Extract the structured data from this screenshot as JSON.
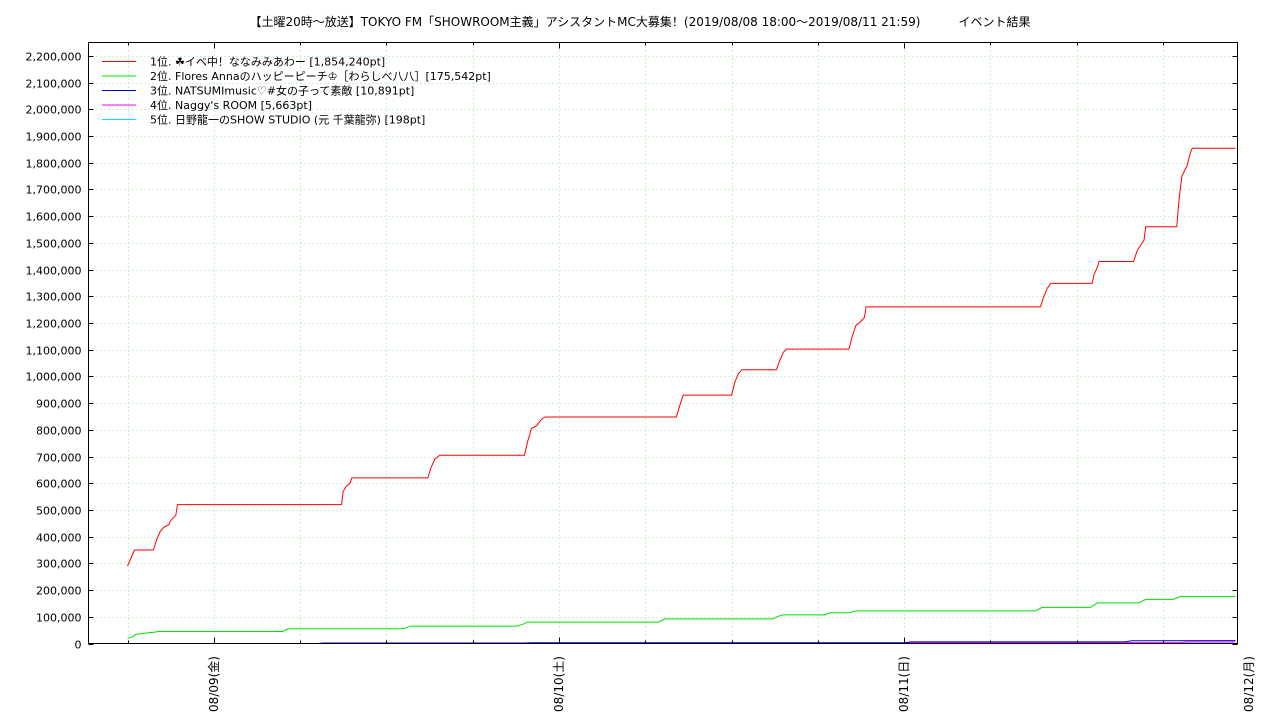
{
  "chart_data": {
    "type": "line",
    "title": "【土曜20時～放送】TOKYO FM「SHOWROOM主義」アシスタントMC大募集！(2019/08/08 18:00～2019/08/11 21:59)          イベント結果",
    "xlabel": "",
    "ylabel": "",
    "x_tick_labels": [
      "08/09(金)",
      "08/10(土)",
      "08/11(日)",
      "08/12(月)"
    ],
    "x_tick_days": [
      1,
      2,
      3,
      4
    ],
    "xlim_days": [
      0.637,
      3.966
    ],
    "ylim": [
      0,
      2250000
    ],
    "y_ticks": [
      0,
      100000,
      200000,
      300000,
      400000,
      500000,
      600000,
      700000,
      800000,
      900000,
      1000000,
      1100000,
      1200000,
      1300000,
      1400000,
      1500000,
      1600000,
      1700000,
      1800000,
      1900000,
      2000000,
      2100000,
      2200000
    ],
    "y_tick_labels": [
      "0",
      "100,000",
      "200,000",
      "300,000",
      "400,000",
      "500,000",
      "600,000",
      "700,000",
      "800,000",
      "900,000",
      "1,000,000",
      "1,100,000",
      "1,200,000",
      "1,300,000",
      "1,400,000",
      "1,500,000",
      "1,600,000",
      "1,700,000",
      "1,800,000",
      "1,900,000",
      "2,000,000",
      "2,100,000",
      "2,200,000"
    ],
    "grid": true,
    "legend_position": "top-left",
    "series": [
      {
        "name": "1位. ☘イベ中！ななみみあわー [1,854,240pt]",
        "color": "#ff0000",
        "points": [
          [
            0.75,
            290000
          ],
          [
            0.76,
            320000
          ],
          [
            0.77,
            350000
          ],
          [
            0.825,
            350000
          ],
          [
            0.835,
            390000
          ],
          [
            0.845,
            420000
          ],
          [
            0.855,
            435000
          ],
          [
            0.87,
            445000
          ],
          [
            0.875,
            460000
          ],
          [
            0.89,
            480000
          ],
          [
            0.895,
            520000
          ],
          [
            1.37,
            520000
          ],
          [
            1.375,
            570000
          ],
          [
            1.385,
            590000
          ],
          [
            1.395,
            600000
          ],
          [
            1.4,
            620000
          ],
          [
            1.62,
            620000
          ],
          [
            1.63,
            660000
          ],
          [
            1.64,
            690000
          ],
          [
            1.655,
            705000
          ],
          [
            1.9,
            705000
          ],
          [
            1.91,
            760000
          ],
          [
            1.915,
            780000
          ],
          [
            1.92,
            805000
          ],
          [
            1.935,
            815000
          ],
          [
            1.95,
            840000
          ],
          [
            1.96,
            848000
          ],
          [
            2.34,
            848000
          ],
          [
            2.35,
            890000
          ],
          [
            2.36,
            930000
          ],
          [
            2.5,
            930000
          ],
          [
            2.51,
            980000
          ],
          [
            2.52,
            1010000
          ],
          [
            2.53,
            1025000
          ],
          [
            2.63,
            1025000
          ],
          [
            2.64,
            1060000
          ],
          [
            2.65,
            1090000
          ],
          [
            2.66,
            1102000
          ],
          [
            2.84,
            1102000
          ],
          [
            2.85,
            1150000
          ],
          [
            2.86,
            1190000
          ],
          [
            2.87,
            1200000
          ],
          [
            2.885,
            1220000
          ],
          [
            2.89,
            1260000
          ],
          [
            3.395,
            1260000
          ],
          [
            3.405,
            1300000
          ],
          [
            3.415,
            1330000
          ],
          [
            3.425,
            1348000
          ],
          [
            3.545,
            1348000
          ],
          [
            3.55,
            1380000
          ],
          [
            3.56,
            1410000
          ],
          [
            3.565,
            1430000
          ],
          [
            3.665,
            1430000
          ],
          [
            3.675,
            1470000
          ],
          [
            3.685,
            1490000
          ],
          [
            3.695,
            1510000
          ],
          [
            3.7,
            1560000
          ],
          [
            3.79,
            1560000
          ],
          [
            3.795,
            1640000
          ],
          [
            3.8,
            1700000
          ],
          [
            3.805,
            1750000
          ],
          [
            3.82,
            1790000
          ],
          [
            3.83,
            1840000
          ],
          [
            3.835,
            1854240
          ],
          [
            3.96,
            1854240
          ]
        ]
      },
      {
        "name": "2位. Flores Annaのハッピーピーチ♔［わらしべ八八］[175,542pt]",
        "color": "#00e000",
        "points": [
          [
            0.75,
            20000
          ],
          [
            0.765,
            25000
          ],
          [
            0.775,
            35000
          ],
          [
            0.8,
            38000
          ],
          [
            0.825,
            42000
          ],
          [
            0.84,
            45000
          ],
          [
            1.2,
            45000
          ],
          [
            1.215,
            55000
          ],
          [
            1.55,
            55000
          ],
          [
            1.57,
            65000
          ],
          [
            1.88,
            65000
          ],
          [
            1.895,
            72000
          ],
          [
            1.91,
            80000
          ],
          [
            2.29,
            80000
          ],
          [
            2.305,
            92000
          ],
          [
            2.62,
            92000
          ],
          [
            2.635,
            102000
          ],
          [
            2.65,
            107000
          ],
          [
            2.77,
            107000
          ],
          [
            2.785,
            115000
          ],
          [
            2.84,
            115000
          ],
          [
            2.86,
            122000
          ],
          [
            3.38,
            122000
          ],
          [
            3.4,
            135000
          ],
          [
            3.54,
            135000
          ],
          [
            3.56,
            152000
          ],
          [
            3.68,
            152000
          ],
          [
            3.7,
            165000
          ],
          [
            3.78,
            165000
          ],
          [
            3.8,
            175542
          ],
          [
            3.96,
            175542
          ]
        ]
      },
      {
        "name": "3位. NATSUMImusic♡#女の子って素敵 [10,891pt]",
        "color": "#0000cc",
        "points": [
          [
            0.75,
            0
          ],
          [
            1.3,
            0
          ],
          [
            1.32,
            2000
          ],
          [
            1.9,
            2000
          ],
          [
            1.92,
            3000
          ],
          [
            3.0,
            3000
          ],
          [
            3.02,
            6000
          ],
          [
            3.64,
            6000
          ],
          [
            3.66,
            10000
          ],
          [
            3.96,
            10891
          ]
        ]
      },
      {
        "name": "4位. Naggy's ROOM [5,663pt]",
        "color": "#ff00ff",
        "points": [
          [
            0.75,
            0
          ],
          [
            1.9,
            0
          ],
          [
            1.92,
            2000
          ],
          [
            3.0,
            2000
          ],
          [
            3.02,
            3500
          ],
          [
            3.8,
            3500
          ],
          [
            3.82,
            5663
          ],
          [
            3.96,
            5663
          ]
        ]
      },
      {
        "name": "5位. 日野龍一のSHOW STUDIO (元 千葉龍弥) [198pt]",
        "color": "#00e5e5",
        "points": [
          [
            0.75,
            0
          ],
          [
            2.5,
            0
          ],
          [
            2.52,
            198
          ],
          [
            3.96,
            198
          ]
        ]
      }
    ]
  }
}
